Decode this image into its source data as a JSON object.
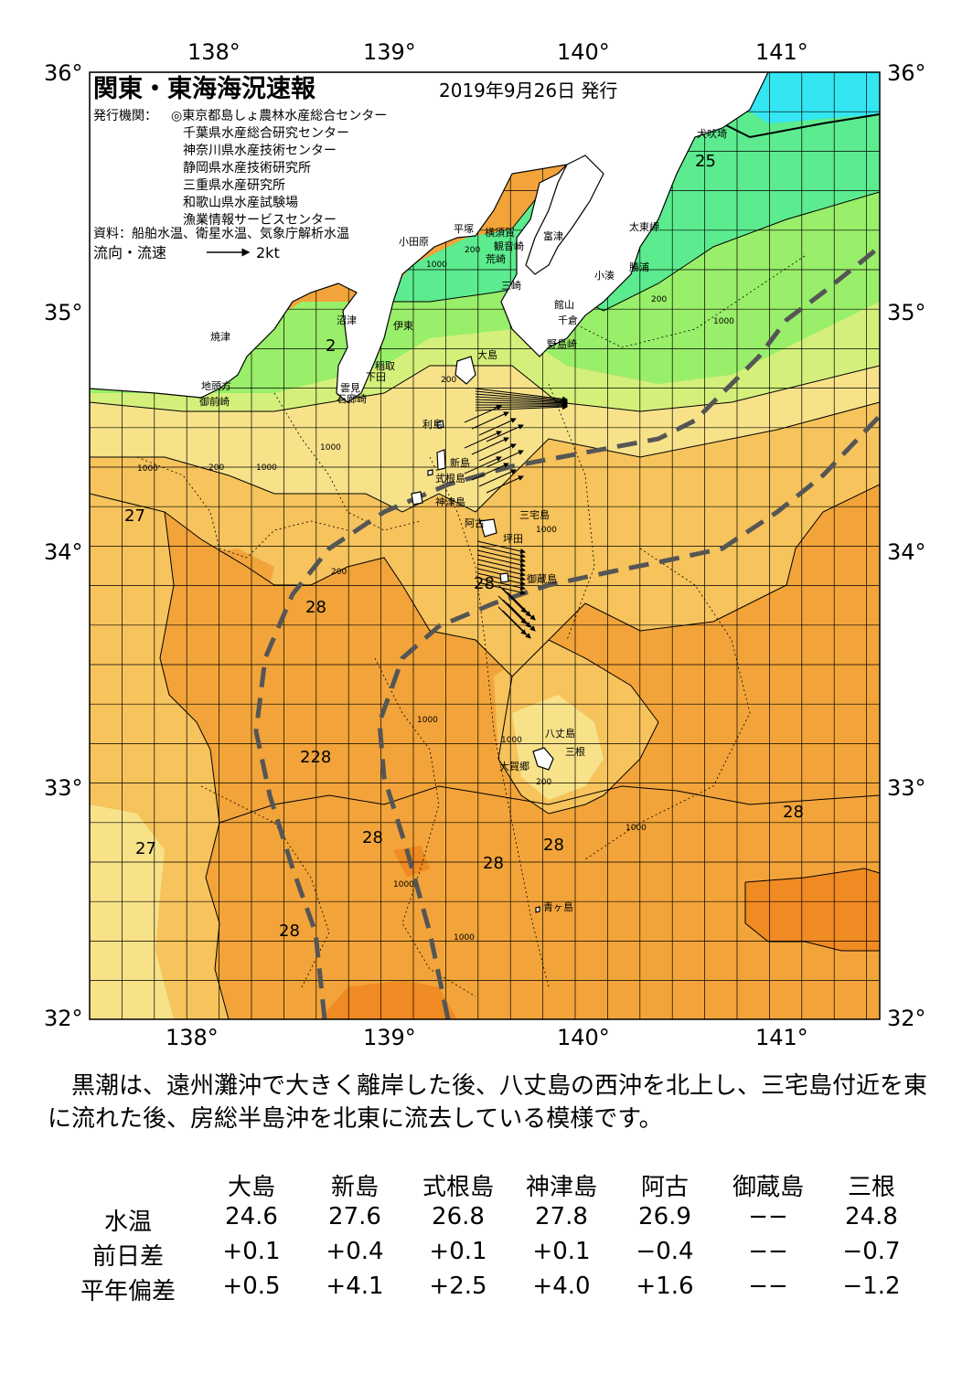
{
  "title": "関東・東海海況速報",
  "issue_date": "2019年9月26日 発行",
  "issuers_label": "発行機関：",
  "issuers": [
    "◎東京都島しょ農林水産総合センター",
    "千葉県水産総合研究センター",
    "神奈川県水産技術センター",
    "静岡県水産技術研究所",
    "三重県水産研究所",
    "和歌山県水産試験場",
    "漁業情報サービスセンター"
  ],
  "sources": "資料：船舶水温、衛星水温、気象庁解析水温",
  "current_legend_label": "流向・流速",
  "current_legend_scale": "2kt",
  "lon_ticks": [
    "138°",
    "139°",
    "140°",
    "141°"
  ],
  "lat_ticks": [
    "36°",
    "35°",
    "34°",
    "33°",
    "32°"
  ],
  "place_names": {
    "odawara": "小田原",
    "hiratsuka": "平塚",
    "yokosuka": "横須賀",
    "kannonzaki": "観音崎",
    "futtsu": "富津",
    "arasaki": "荒崎",
    "misaki": "三崎",
    "tateyama": "館山",
    "chikura": "千倉",
    "nojimazaki": "野島崎",
    "kominato": "小湊",
    "katsuura": "勝浦",
    "taitomisaki": "太東岬",
    "inubosaki": "犬吠埼",
    "numazu": "沼津",
    "ito": "伊東",
    "inatori": "稲取",
    "shimoda": "下田",
    "kumomi": "雲見",
    "irozaki": "石廊崎",
    "yaizu": "焼津",
    "jitokata": "地頭方",
    "omaezaki": "御前崎",
    "oshima": "大島",
    "toshima": "利島",
    "niijima": "新島",
    "shikinejima": "式根島",
    "kozushima": "神津島",
    "ako": "阿古",
    "miyakejima": "三宅島",
    "tsubota": "坪田",
    "mikurajima": "御蔵島",
    "hachijojima": "八丈島",
    "mitsune": "三根",
    "okago": "大賀郷",
    "aogashima": "青ヶ島"
  },
  "isotherm_labels": [
    "25",
    "27",
    "27",
    "28",
    "28",
    "228",
    "28",
    "28",
    "28",
    "28",
    "28",
    "27",
    "28",
    "2"
  ],
  "depth_labels": [
    "1000",
    "200",
    "200",
    "200",
    "1000",
    "1000",
    "200",
    "1000",
    "200",
    "1000",
    "1000",
    "1000",
    "200",
    "1000",
    "1000",
    "1000",
    "200",
    "1000",
    "1000",
    "200",
    "1000"
  ],
  "summary": "黒潮は、遠州灘沖で大きく離岸した後、八丈島の西沖を北上し、三宅島付近を東に流れた後、房総半島沖を北東に流去している模様です。",
  "colors": {
    "temp_lt22": "#33e6f2",
    "temp_22_24": "#5ceb8e",
    "temp_24_25": "#99ee6a",
    "temp_25_26": "#d4f07a",
    "temp_26_27": "#f7e28a",
    "temp_27_28": "#f6c35c",
    "temp_28_29": "#f2a43a",
    "temp_gt29": "#f08a22",
    "land": "#ffffff",
    "kuroshio_axis": "#555555"
  },
  "table": {
    "columns": [
      "大島",
      "新島",
      "式根島",
      "神津島",
      "阿古",
      "御蔵島",
      "三根"
    ],
    "rows": [
      {
        "label": "水温",
        "values": [
          "24.6",
          "27.6",
          "26.8",
          "27.8",
          "26.9",
          "−−",
          "24.8"
        ]
      },
      {
        "label": "前日差",
        "values": [
          "+0.1",
          "+0.4",
          "+0.1",
          "+0.1",
          "−0.4",
          "−−",
          "−0.7"
        ]
      },
      {
        "label": "平年偏差",
        "values": [
          "+0.5",
          "+4.1",
          "+2.5",
          "+4.0",
          "+1.6",
          "−−",
          "−1.2"
        ]
      }
    ]
  }
}
